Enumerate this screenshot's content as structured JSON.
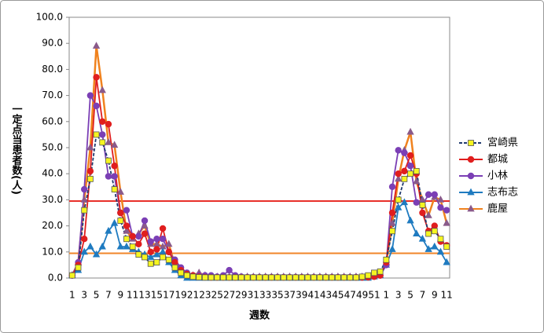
{
  "chart_data": {
    "type": "line",
    "y_label": "一定点当患者数(人)",
    "x_label": "週数",
    "categories": [
      "1",
      null,
      "3",
      null,
      "5",
      null,
      "7",
      null,
      "9",
      null,
      "11",
      null,
      "13",
      null,
      "15",
      null,
      "17",
      null,
      "19",
      null,
      "21",
      null,
      "23",
      null,
      "25",
      null,
      "27",
      null,
      "29",
      null,
      "31",
      null,
      "33",
      null,
      "35",
      null,
      "37",
      null,
      "39",
      null,
      "41",
      null,
      "43",
      null,
      "45",
      null,
      "47",
      null,
      "49",
      null,
      "51",
      null,
      "1",
      null,
      "3",
      null,
      "5",
      null,
      "7",
      null,
      "9",
      null,
      "11"
    ],
    "ylim": [
      0,
      100
    ],
    "yticks": [
      {
        "value": 0,
        "label": "0.0"
      },
      {
        "value": 10,
        "label": "10.0"
      },
      {
        "value": 20,
        "label": "20.0"
      },
      {
        "value": 30,
        "label": "30.0"
      },
      {
        "value": 40,
        "label": "40.0"
      },
      {
        "value": 50,
        "label": "50.0"
      },
      {
        "value": 60,
        "label": "60.0"
      },
      {
        "value": 70,
        "label": "70.0"
      },
      {
        "value": 80,
        "label": "80.0"
      },
      {
        "value": 90,
        "label": "90.0"
      },
      {
        "value": 100,
        "label": "100.0"
      }
    ],
    "reference_lines": [
      {
        "value": 29.5,
        "color": "#e8302a"
      },
      {
        "value": 9.5,
        "color": "#f0852a"
      }
    ],
    "series": [
      {
        "name": "宮崎県",
        "color": "#1f3a6e",
        "marker": "square",
        "marker_color": "#f5f520",
        "dashed": true,
        "values": [
          1,
          4,
          26,
          38,
          55,
          52,
          45,
          34,
          22,
          15,
          12,
          9,
          8,
          5.5,
          6,
          8,
          7,
          4,
          2,
          1,
          0.5,
          0.3,
          0.2,
          0.2,
          0.2,
          0.2,
          0.2,
          0.2,
          0.2,
          0.2,
          0.2,
          0.2,
          0.2,
          0.2,
          0.2,
          0.2,
          0.2,
          0.2,
          0.2,
          0.2,
          0.2,
          0.2,
          0.2,
          0.2,
          0.2,
          0.2,
          0.2,
          0.2,
          0.5,
          1,
          2,
          2.5,
          7,
          18,
          30,
          38,
          40,
          41,
          28,
          17,
          18,
          15,
          12
        ]
      },
      {
        "name": "都城",
        "color": "#e01e1e",
        "marker": "circle",
        "marker_color": "#e01e1e",
        "dashed": false,
        "values": [
          1,
          5,
          15,
          41,
          77,
          60,
          59,
          43,
          25,
          20,
          16,
          13,
          17,
          10,
          11,
          19,
          10,
          6,
          3,
          1.5,
          1,
          0.5,
          0.3,
          0.2,
          0.2,
          0.2,
          0.2,
          0.2,
          0.2,
          0.2,
          0.2,
          0.2,
          0.2,
          0.2,
          0.2,
          0.2,
          0.2,
          0.2,
          0.2,
          0.2,
          0.2,
          0.2,
          0.2,
          0.2,
          0.2,
          0.2,
          0.2,
          0.2,
          0.2,
          0.3,
          0.5,
          1,
          6,
          25,
          40,
          41,
          47,
          40,
          25,
          18,
          20,
          14,
          12.5
        ]
      },
      {
        "name": "小林",
        "color": "#7b3fb5",
        "marker": "circle",
        "marker_color": "#7b3fb5",
        "dashed": false,
        "values": [
          1,
          6,
          34,
          70,
          66,
          55,
          39,
          39,
          25,
          26,
          16,
          16,
          22,
          14,
          15,
          15,
          10,
          7,
          4,
          2,
          1,
          1,
          1,
          1,
          0.5,
          1,
          3,
          1,
          0.5,
          0.3,
          0.3,
          0.3,
          0.3,
          0.3,
          0.3,
          0.3,
          0.3,
          0.3,
          0.3,
          0.3,
          0.3,
          0.3,
          0.3,
          0.3,
          0.3,
          0.3,
          0.3,
          0.3,
          0.3,
          0.5,
          1,
          1,
          5,
          35,
          49,
          48,
          43,
          29,
          28,
          32,
          32,
          27,
          26
        ]
      },
      {
        "name": "志布志",
        "color": "#1f7bc0",
        "marker": "triangle",
        "marker_color": "#1f7bc0",
        "dashed": false,
        "values": [
          1,
          3,
          10,
          12,
          9,
          12,
          18,
          21,
          12,
          12,
          11,
          10,
          9,
          8,
          9,
          10,
          6,
          3,
          1,
          0,
          0,
          0,
          0,
          0,
          0,
          0,
          0,
          0,
          0,
          0,
          0,
          0,
          0,
          0,
          0,
          0,
          0,
          0,
          0,
          0,
          0,
          0,
          0,
          0,
          0,
          0,
          0,
          0,
          0,
          0,
          0.5,
          1,
          5,
          11,
          27,
          29,
          22,
          17,
          15,
          11,
          12,
          10,
          6
        ]
      },
      {
        "name": "鹿屋",
        "color": "#f0821e",
        "marker": "triangle",
        "marker_color": "#8a5a8a",
        "dashed": false,
        "values": [
          1,
          6,
          30,
          50,
          89,
          72,
          52,
          51,
          33,
          18,
          15,
          17,
          20,
          13,
          13,
          12,
          13,
          5,
          3,
          1,
          1,
          2,
          1,
          0.5,
          0.5,
          0.5,
          0.5,
          0.5,
          0.5,
          0.5,
          0.5,
          0.5,
          0.5,
          0.5,
          0.5,
          0.5,
          0.5,
          0.5,
          0.5,
          0.5,
          0.5,
          0.5,
          0.5,
          0.5,
          0.5,
          0.5,
          0.5,
          0.5,
          0.5,
          0.5,
          1,
          1,
          6,
          21,
          38,
          49,
          56,
          37,
          30,
          24,
          31,
          30,
          21
        ]
      }
    ]
  }
}
